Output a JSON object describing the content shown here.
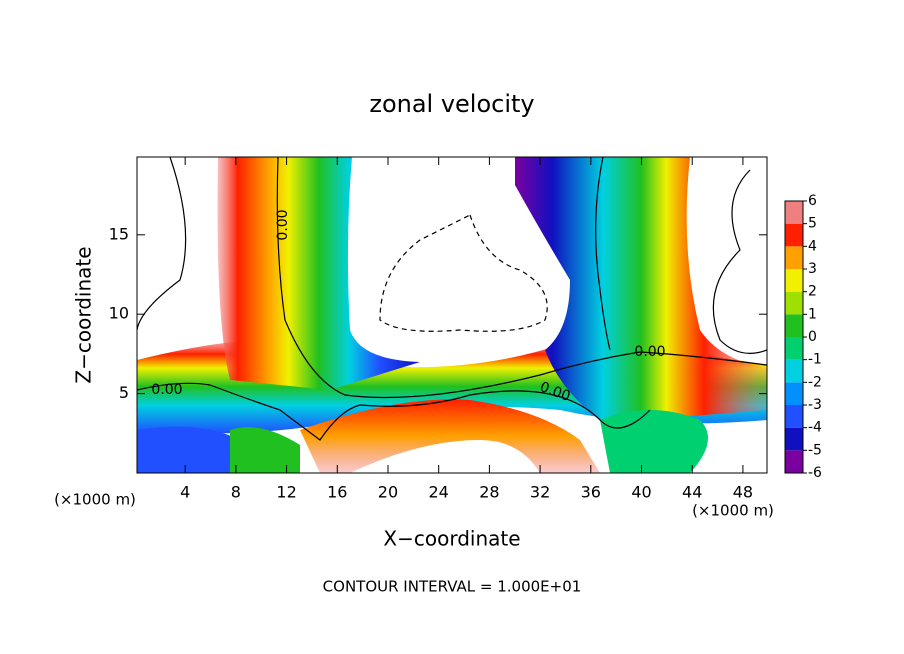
{
  "chart_data": {
    "type": "contour",
    "title": "zonal velocity",
    "xlabel": "X−coordinate",
    "ylabel": "Z−coordinate",
    "x_units": "(×1000 m)",
    "y_units": "(×1000 m)",
    "footer": "CONTOUR INTERVAL = 1.000E+01",
    "xlim": [
      0.2,
      49.9
    ],
    "xticks": [
      4,
      8,
      12,
      16,
      20,
      24,
      28,
      32,
      36,
      40,
      44,
      48
    ],
    "ylim": [
      0,
      19.9
    ],
    "yticks": [
      5,
      10,
      15
    ],
    "contour_labels": [
      {
        "value": 0,
        "label": "0.00"
      },
      {
        "value": 0,
        "label": "0.00"
      },
      {
        "value": 0,
        "label": "0.00"
      },
      {
        "value": 0,
        "label": "0.00"
      }
    ],
    "colorbar": {
      "levels": [
        -6,
        -5,
        -4,
        -3,
        -2,
        -1,
        0,
        1,
        2,
        3,
        4,
        5,
        6
      ],
      "colors": [
        "#7a00a0",
        "#1010c0",
        "#2050ff",
        "#0090ff",
        "#00d0e0",
        "#00d070",
        "#20c020",
        "#a0e000",
        "#f0f000",
        "#ffa000",
        "#ff2000",
        "#f08080"
      ]
    }
  }
}
